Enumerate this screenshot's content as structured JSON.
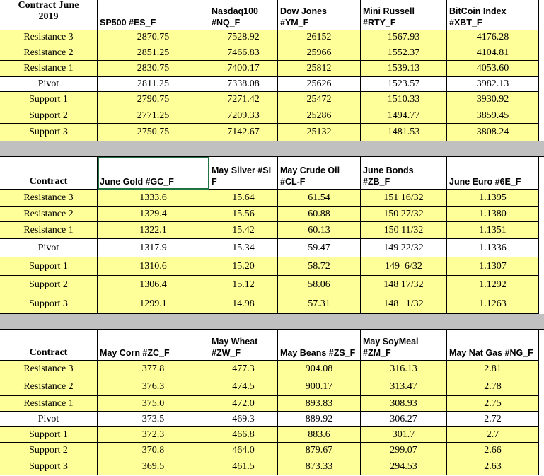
{
  "sections": [
    {
      "header": [
        "Contract June\n2019",
        "SP500 #ES_F",
        "Nasdaq100\n#NQ_F",
        "Dow Jones\n#YM_F",
        "Mini Russell\n#RTY_F",
        "BitCoin Index\n#XBT_F"
      ],
      "rows": [
        [
          "Resistance 3",
          "2870.75",
          "7528.92",
          "26152",
          "1567.93",
          "4176.28"
        ],
        [
          "Resistance 2",
          "2851.25",
          "7466.83",
          "25966",
          "1552.37",
          "4104.81"
        ],
        [
          "Resistance 1",
          "2830.75",
          "7400.17",
          "25812",
          "1539.13",
          "4053.60"
        ],
        [
          "Pivot",
          "2811.25",
          "7338.08",
          "25626",
          "1523.57",
          "3982.13"
        ],
        [
          "Support 1",
          "2790.75",
          "7271.42",
          "25472",
          "1510.33",
          "3930.92"
        ],
        [
          "Support 2",
          "2771.25",
          "7209.33",
          "25286",
          "1494.77",
          "3859.45"
        ],
        [
          "Support 3",
          "2750.75",
          "7142.67",
          "25132",
          "1481.53",
          "3808.24"
        ]
      ]
    },
    {
      "header": [
        "Contract",
        "June Gold #GC_F",
        "May Silver #SI\nF",
        "May Crude Oil\n#CL-F",
        "June Bonds\n#ZB_F",
        "June Euro #6E_F"
      ],
      "rows": [
        [
          "Resistance 3",
          "1333.6",
          "15.64",
          "61.54",
          "151 16/32",
          "1.1395"
        ],
        [
          "Resistance 2",
          "1329.4",
          "15.56",
          "60.88",
          "150 27/32",
          "1.1380"
        ],
        [
          "Resistance 1",
          "1322.1",
          "15.42",
          "60.13",
          "150 11/32",
          "1.1351"
        ],
        [
          "Pivot",
          "1317.9",
          "15.34",
          "59.47",
          "149 22/32",
          "1.1336"
        ],
        [
          "Support 1",
          "1310.6",
          "15.20",
          "58.72",
          "149  6/32",
          "1.1307"
        ],
        [
          "Support 2",
          "1306.4",
          "15.12",
          "58.06",
          "148 17/32",
          "1.1292"
        ],
        [
          "Support 3",
          "1299.1",
          "14.98",
          "57.31",
          "148   1/32",
          "1.1263"
        ]
      ]
    },
    {
      "header": [
        "Contract",
        "May  Corn #ZC_F",
        "May Wheat\n#ZW_F",
        "May Beans #ZS_F",
        "May SoyMeal\n#ZM_F",
        "May Nat Gas #NG_F"
      ],
      "rows": [
        [
          "Resistance 3",
          "377.8",
          "477.3",
          "904.08",
          "316.13",
          "2.81"
        ],
        [
          "Resistance 2",
          "376.3",
          "474.5",
          "900.17",
          "313.47",
          "2.78"
        ],
        [
          "Resistance 1",
          "375.0",
          "472.0",
          "893.83",
          "308.93",
          "2.75"
        ],
        [
          "Pivot",
          "373.5",
          "469.3",
          "889.92",
          "306.27",
          "2.72"
        ],
        [
          "Support 1",
          "372.3",
          "466.8",
          "883.6",
          "301.7",
          "2.7"
        ],
        [
          "Support 2",
          "370.8",
          "464.0",
          "879.67",
          "299.07",
          "2.66"
        ],
        [
          "Support 3",
          "369.5",
          "461.5",
          "873.33",
          "294.53",
          "2.63"
        ]
      ]
    }
  ]
}
